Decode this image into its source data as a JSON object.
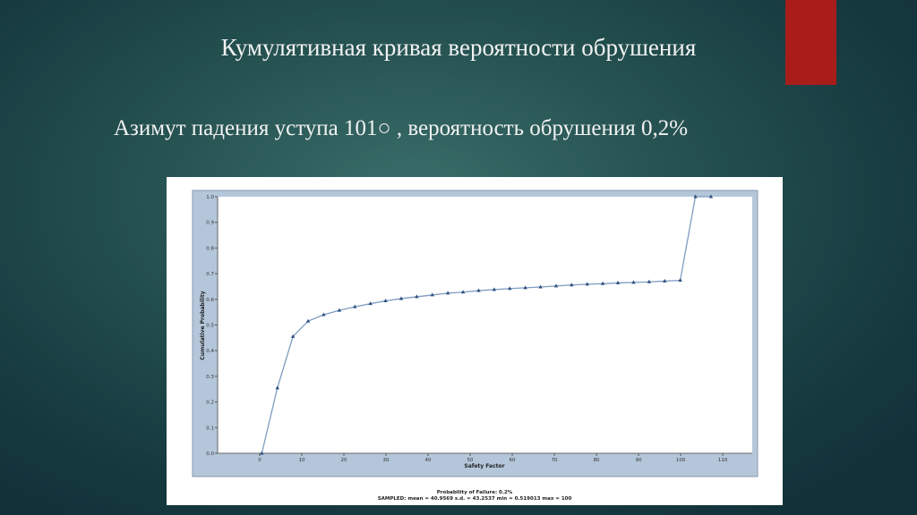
{
  "slide": {
    "title": "Кумулятивная кривая вероятности обрушения",
    "subtitle": "Азимут падения уступа 101○ , вероятность обрушения 0,2%",
    "accent_color": "#a81d1a"
  },
  "chart_data": {
    "type": "line",
    "xlabel": "Safety Factor",
    "ylabel": "Cumulative Probability",
    "xlim": [
      -10,
      117
    ],
    "ylim": [
      0,
      1.0
    ],
    "x_ticks": [
      "0",
      "10",
      "20",
      "30",
      "40",
      "50",
      "60",
      "70",
      "80",
      "90",
      "100",
      "110"
    ],
    "y_ticks": [
      "0.0",
      "0.1",
      "0.2",
      "0.3",
      "0.4",
      "0.5",
      "0.6",
      "0.7",
      "0.8",
      "0.9",
      "1.0"
    ],
    "marker": "triangle",
    "line_color": "#7f9cc0",
    "marker_color": "#2f4f80",
    "frame_color": "#b4c6da",
    "x": [
      0.5,
      4.2,
      7.9,
      11.5,
      15.2,
      18.9,
      22.6,
      26.3,
      29.9,
      33.6,
      37.3,
      41.0,
      44.7,
      48.3,
      52.0,
      55.7,
      59.4,
      63.1,
      66.7,
      70.4,
      74.1,
      77.8,
      81.5,
      85.1,
      88.8,
      92.5,
      96.2,
      99.9,
      103.5,
      107.2
    ],
    "y": [
      0.0,
      0.255,
      0.455,
      0.515,
      0.54,
      0.557,
      0.571,
      0.583,
      0.594,
      0.603,
      0.61,
      0.617,
      0.624,
      0.628,
      0.634,
      0.638,
      0.642,
      0.645,
      0.648,
      0.652,
      0.656,
      0.659,
      0.661,
      0.664,
      0.666,
      0.668,
      0.671,
      0.674,
      1.0,
      1.0
    ],
    "footer_line1": "Probability of Failure: 0.2%",
    "footer_line2": "SAMPLED: mean = 40.9569 s.d. = 43.2537 min = 0.519013 max = 100"
  }
}
